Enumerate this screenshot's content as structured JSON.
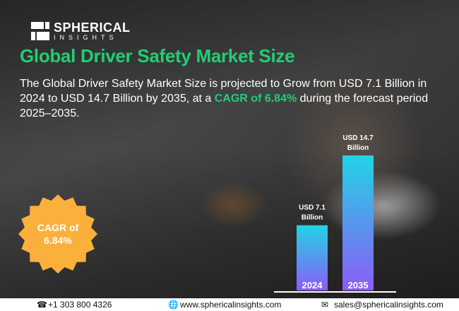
{
  "brand": {
    "name": "SPHERICAL",
    "sub": "INSIGHTS"
  },
  "title": "Global Driver Safety Market Size",
  "description": {
    "part1": "The Global Driver Safety Market Size is projected to Grow from USD 7.1 Billion in 2024 to USD 14.7 Billion by 2035, at a ",
    "highlight": "CAGR of 6.84%",
    "part2": " during the forecast period 2025–2035."
  },
  "badge": {
    "line1": "CAGR of",
    "line2": "6.84%",
    "color": "#fbb03b"
  },
  "chart_data": {
    "type": "bar",
    "categories": [
      "2024",
      "2035"
    ],
    "values": [
      7.1,
      14.7
    ],
    "data_labels": [
      [
        "USD 7.1",
        "Billion"
      ],
      [
        "USD 14.7",
        "Billion"
      ]
    ],
    "unit": "USD Billion",
    "colors": {
      "top": "#22d3e6",
      "bottom": "#8b5cf6"
    }
  },
  "footer": {
    "phone": "+1 303 800 4326",
    "website": "www.sphericalinsights.com",
    "email": "sales@sphericalinsights.com"
  }
}
